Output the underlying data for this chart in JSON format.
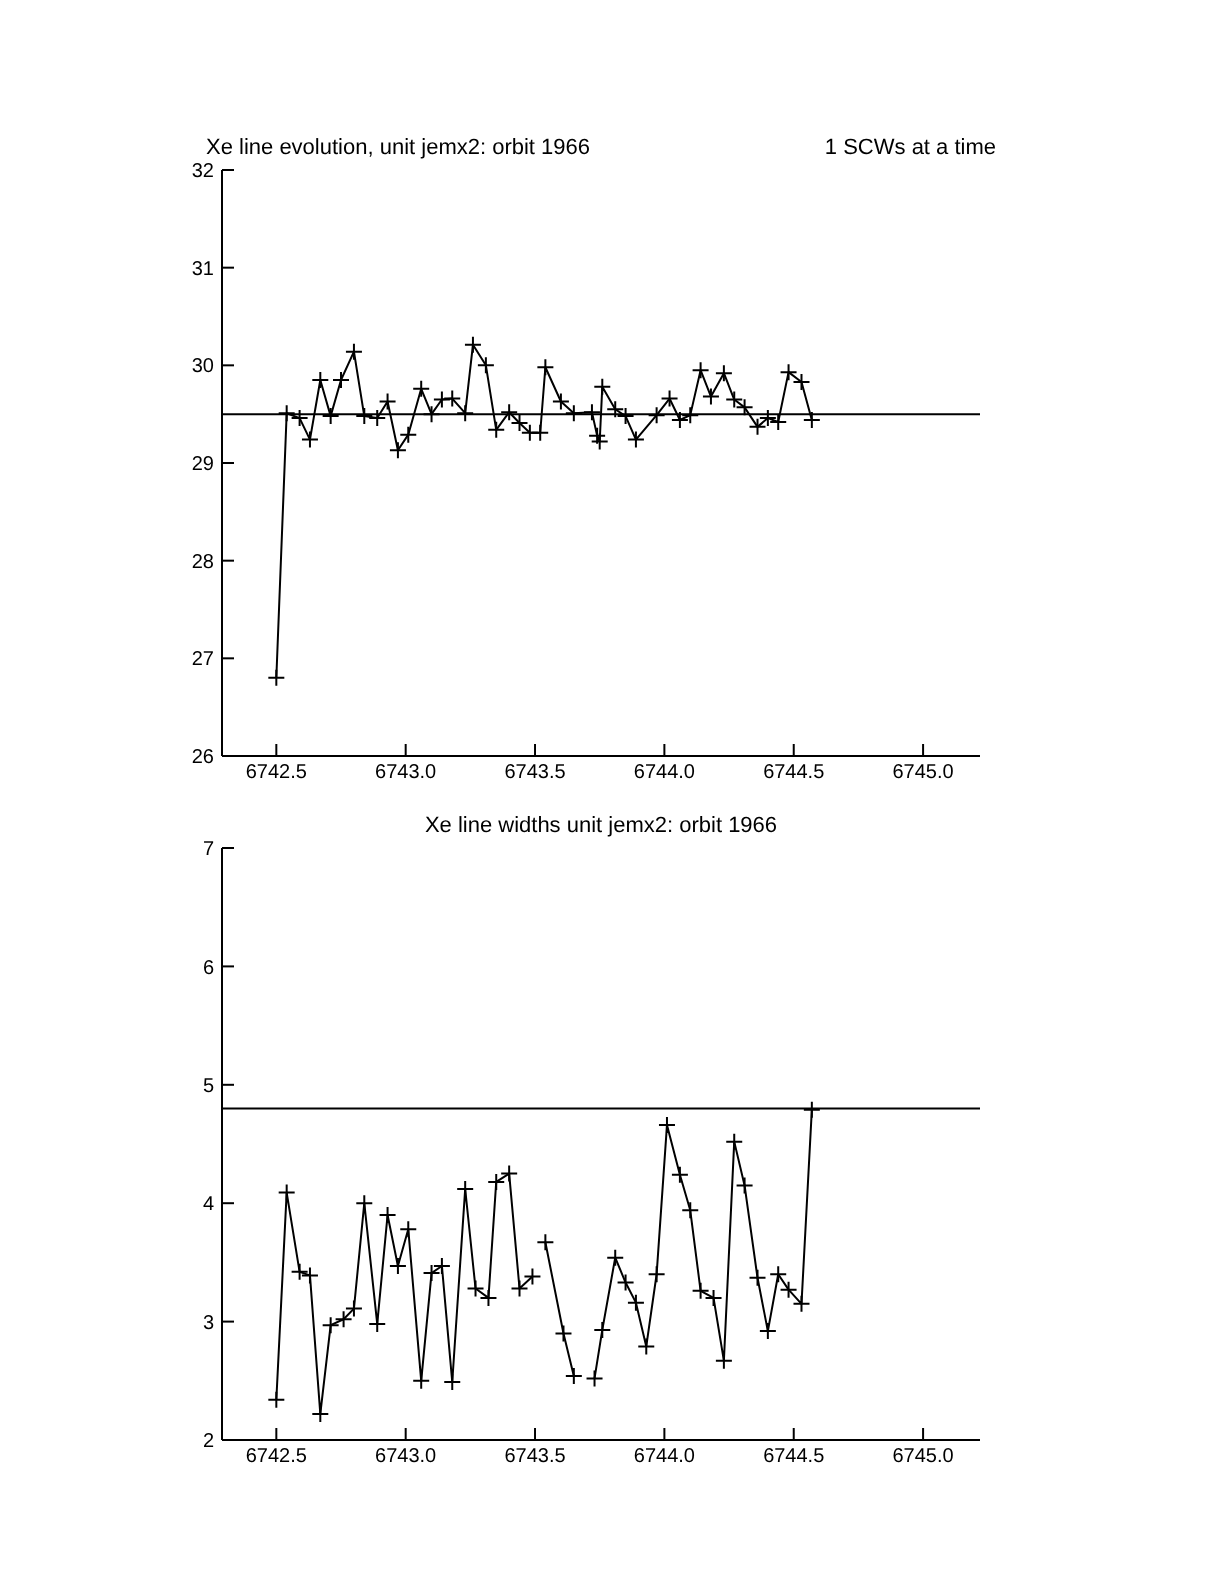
{
  "chart_data": [
    {
      "type": "line",
      "title": "Xe line evolution, unit jemx2: orbit 1966",
      "subtitle": "1 SCWs at a time",
      "color": "#000000",
      "marker": "cross",
      "x": [
        6742.5,
        6742.54,
        6742.59,
        6742.63,
        6742.67,
        6742.71,
        6742.75,
        6742.8,
        6742.84,
        6742.89,
        6742.93,
        6742.97,
        6743.01,
        6743.06,
        6743.1,
        6743.14,
        6743.18,
        6743.23,
        6743.26,
        6743.31,
        6743.35,
        6743.4,
        6743.44,
        6743.48,
        6743.52,
        6743.54,
        6743.6,
        6743.65,
        6743.72,
        6743.74,
        6743.75,
        6743.76,
        6743.81,
        6743.85,
        6743.89,
        6743.97,
        6744.02,
        6744.06,
        6744.1,
        6744.14,
        6744.18,
        6744.23,
        6744.27,
        6744.31,
        6744.36,
        6744.4,
        6744.44,
        6744.48,
        6744.53,
        6744.57
      ],
      "values": [
        26.8,
        29.51,
        29.46,
        29.24,
        29.85,
        29.48,
        29.85,
        30.14,
        29.48,
        29.46,
        29.63,
        29.13,
        29.29,
        29.76,
        29.5,
        29.65,
        29.66,
        29.51,
        30.21,
        30.0,
        29.34,
        29.52,
        29.41,
        29.31,
        29.31,
        29.98,
        29.63,
        29.51,
        29.52,
        29.28,
        29.22,
        29.78,
        29.55,
        29.48,
        29.24,
        29.49,
        29.66,
        29.44,
        29.49,
        29.95,
        29.68,
        29.92,
        29.65,
        29.57,
        29.37,
        29.46,
        29.42,
        29.93,
        29.83,
        29.44
      ],
      "xlim": [
        6742.29,
        6745.22
      ],
      "xticks": [
        6742.5,
        {
          "value": 6743,
          "label": "6743.0"
        },
        6743.5,
        {
          "value": 6744,
          "label": "6744.0"
        },
        6744.5,
        {
          "value": 6745,
          "label": "6745.0"
        }
      ],
      "ylim": [
        26,
        32
      ],
      "yticks": [
        26,
        27,
        28,
        29,
        30,
        31,
        32
      ],
      "ref_lines": [
        {
          "axis": "y",
          "value": 29.5,
          "color": "#000000"
        }
      ]
    },
    {
      "type": "line",
      "title": "Xe line widths unit jemx2: orbit 1966",
      "color": "#000000",
      "marker": "cross",
      "x": [
        6742.5,
        6742.54,
        6742.59,
        6742.63,
        6742.67,
        6742.71,
        6742.76,
        6742.8,
        6742.84,
        6742.89,
        6742.93,
        6742.97,
        6743.01,
        6743.06,
        6743.1,
        6743.14,
        6743.18,
        6743.23,
        6743.27,
        6743.32,
        6743.35,
        6743.4,
        6743.44,
        6743.49,
        6743.52,
        6743.54,
        6743.61,
        6743.65,
        6743.69,
        6743.73,
        6743.76,
        6743.81,
        6743.85,
        6743.89,
        6743.93,
        6743.97,
        6744.01,
        6744.06,
        6744.1,
        6744.14,
        6744.19,
        6744.23,
        6744.27,
        6744.31,
        6744.36,
        6744.4,
        6744.44,
        6744.48,
        6744.53,
        6744.57
      ],
      "values": [
        2.34,
        4.09,
        3.42,
        3.39,
        2.22,
        2.97,
        3.02,
        3.11,
        4.0,
        2.98,
        3.9,
        3.47,
        3.78,
        2.5,
        3.41,
        3.47,
        2.49,
        4.12,
        3.28,
        3.2,
        4.18,
        4.25,
        3.28,
        3.38,
        null,
        3.67,
        2.9,
        2.54,
        null,
        2.52,
        2.93,
        3.54,
        3.33,
        3.16,
        2.79,
        3.4,
        4.66,
        4.24,
        3.94,
        3.26,
        3.2,
        2.67,
        4.52,
        4.15,
        3.37,
        2.92,
        3.4,
        3.27,
        3.15,
        4.79
      ],
      "xlim": [
        6742.29,
        6745.22
      ],
      "xticks": [
        6742.5,
        {
          "value": 6743,
          "label": "6743.0"
        },
        6743.5,
        {
          "value": 6744,
          "label": "6744.0"
        },
        6744.5,
        {
          "value": 6745,
          "label": "6745.0"
        }
      ],
      "ylim": [
        2,
        7
      ],
      "yticks": [
        2,
        3,
        4,
        5,
        6,
        7
      ],
      "ref_lines": [
        {
          "axis": "y",
          "value": 4.8,
          "color": "#000000"
        }
      ]
    }
  ]
}
